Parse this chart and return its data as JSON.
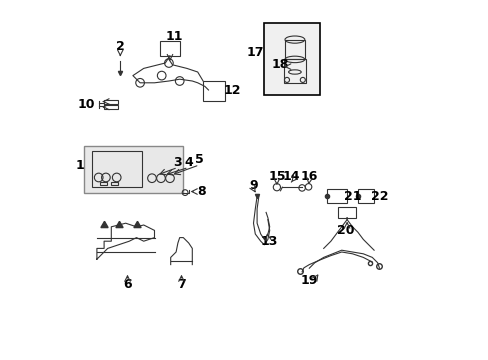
{
  "bg_color": "#ffffff",
  "line_color": "#333333",
  "label_color": "#000000",
  "font_size": 9
}
